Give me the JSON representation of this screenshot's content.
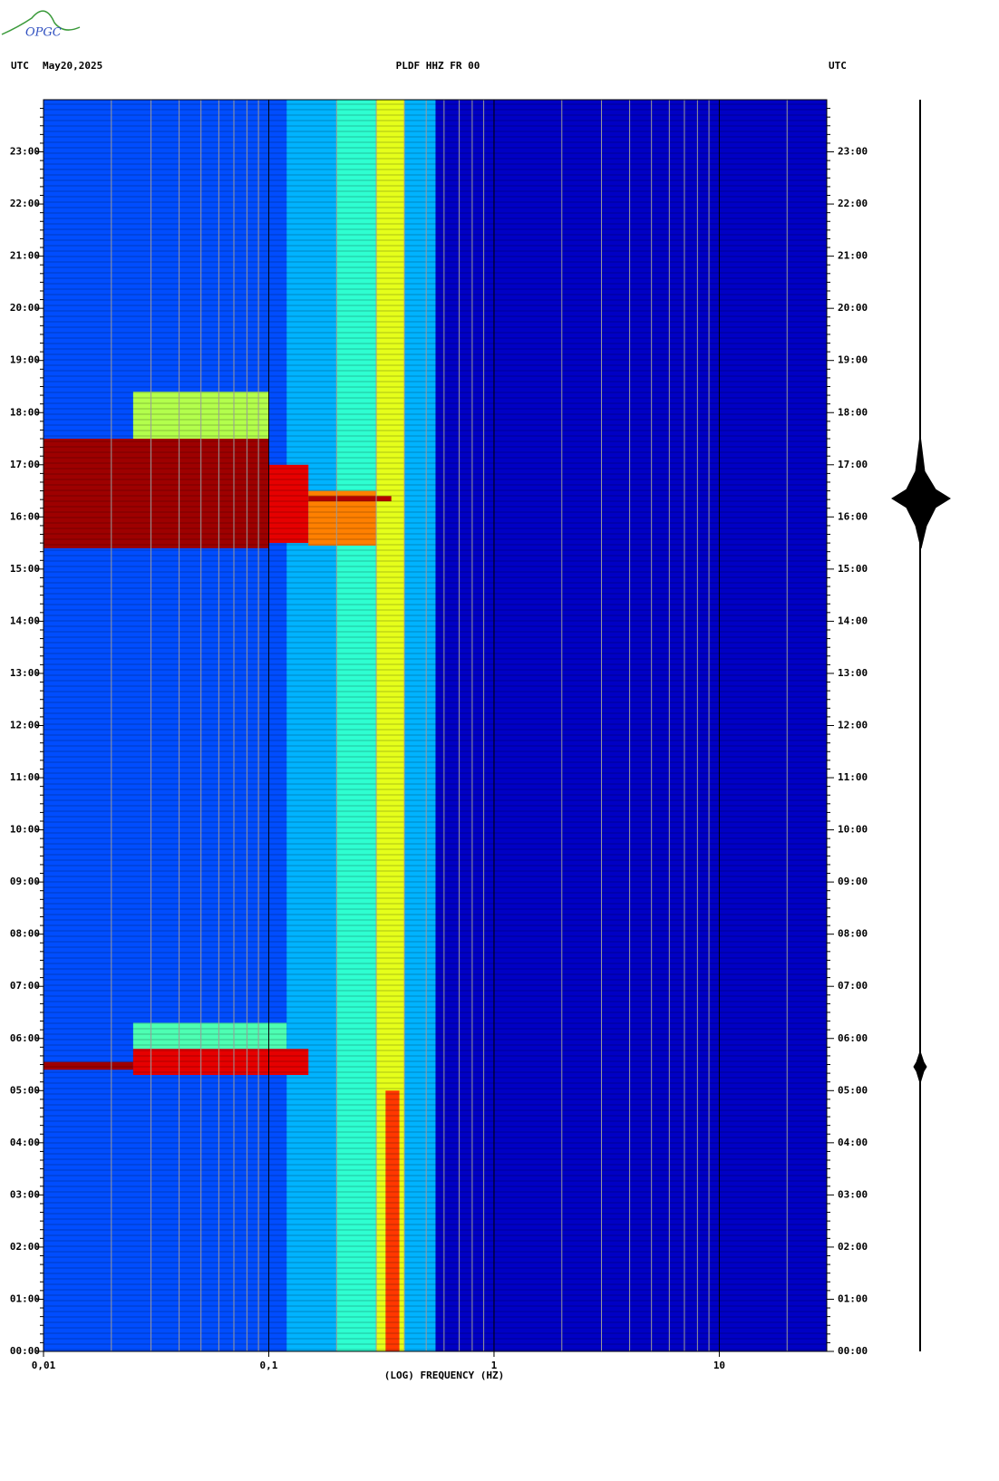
{
  "logo": "OPGC",
  "header": {
    "left_zone": "UTC",
    "date": "May20,2025",
    "station": "PLDF HHZ FR 00",
    "right_zone": "UTC"
  },
  "chart_data": {
    "type": "spectrogram",
    "x_label": "(LOG) FREQUENCY (HZ)",
    "log_x": true,
    "xlim": [
      0.01,
      30
    ],
    "xticks": [
      {
        "value": 0.01,
        "label": "0,01"
      },
      {
        "value": 0.1,
        "label": "0,1"
      },
      1,
      10
    ],
    "xgrid": [
      0.02,
      0.03,
      0.04,
      0.05,
      0.06,
      0.07,
      0.08,
      0.09,
      0.2,
      0.3,
      0.4,
      0.5,
      0.6,
      0.7,
      0.8,
      0.9,
      2,
      3,
      4,
      5,
      6,
      7,
      8,
      9,
      20,
      30
    ],
    "ylim": [
      0,
      24
    ],
    "yticks": [
      {
        "value": 0,
        "label": "00:00"
      },
      {
        "value": 1,
        "label": "01:00"
      },
      {
        "value": 2,
        "label": "02:00"
      },
      {
        "value": 3,
        "label": "03:00"
      },
      {
        "value": 4,
        "label": "04:00"
      },
      {
        "value": 5,
        "label": "05:00"
      },
      {
        "value": 6,
        "label": "06:00"
      },
      {
        "value": 7,
        "label": "07:00"
      },
      {
        "value": 8,
        "label": "08:00"
      },
      {
        "value": 9,
        "label": "09:00"
      },
      {
        "value": 10,
        "label": "10:00"
      },
      {
        "value": 11,
        "label": "11:00"
      },
      {
        "value": 12,
        "label": "12:00"
      },
      {
        "value": 13,
        "label": "13:00"
      },
      {
        "value": 14,
        "label": "14:00"
      },
      {
        "value": 15,
        "label": "15:00"
      },
      {
        "value": 16,
        "label": "16:00"
      },
      {
        "value": 17,
        "label": "17:00"
      },
      {
        "value": 18,
        "label": "18:00"
      },
      {
        "value": 19,
        "label": "19:00"
      },
      {
        "value": 20,
        "label": "20:00"
      },
      {
        "value": 21,
        "label": "21:00"
      },
      {
        "value": 22,
        "label": "22:00"
      },
      {
        "value": 23,
        "label": "23:00"
      }
    ],
    "regions": [
      {
        "f": [
          0.01,
          30
        ],
        "t": [
          0,
          24
        ],
        "level": 0.06
      },
      {
        "f": [
          0.01,
          0.12
        ],
        "t": [
          0,
          24
        ],
        "level": 0.2
      },
      {
        "f": [
          0.12,
          0.2
        ],
        "t": [
          0,
          24
        ],
        "level": 0.3
      },
      {
        "f": [
          0.2,
          0.3
        ],
        "t": [
          0,
          24
        ],
        "level": 0.42
      },
      {
        "f": [
          0.3,
          0.4
        ],
        "t": [
          0,
          24
        ],
        "level": 0.6
      },
      {
        "f": [
          0.33,
          0.38
        ],
        "t": [
          0,
          5
        ],
        "level": 0.82
      },
      {
        "f": [
          0.4,
          0.55
        ],
        "t": [
          0,
          24
        ],
        "level": 0.3
      },
      {
        "f": [
          0.025,
          0.1
        ],
        "t": [
          17.5,
          18.4
        ],
        "level": 0.55
      },
      {
        "f": [
          0.01,
          0.1
        ],
        "t": [
          15.4,
          17.5
        ],
        "level": 0.97
      },
      {
        "f": [
          0.1,
          0.15
        ],
        "t": [
          15.5,
          17.0
        ],
        "level": 0.9
      },
      {
        "f": [
          0.15,
          0.3
        ],
        "t": [
          15.45,
          16.5
        ],
        "level": 0.75
      },
      {
        "f": [
          0.15,
          0.35
        ],
        "t": [
          16.3,
          16.4
        ],
        "level": 0.95
      },
      {
        "f": [
          0.025,
          0.12
        ],
        "t": [
          5.8,
          6.3
        ],
        "level": 0.45
      },
      {
        "f": [
          0.01,
          0.025
        ],
        "t": [
          5.4,
          5.55
        ],
        "level": 0.97
      },
      {
        "f": [
          0.025,
          0.15
        ],
        "t": [
          5.3,
          5.8
        ],
        "level": 0.9
      }
    ]
  }
}
